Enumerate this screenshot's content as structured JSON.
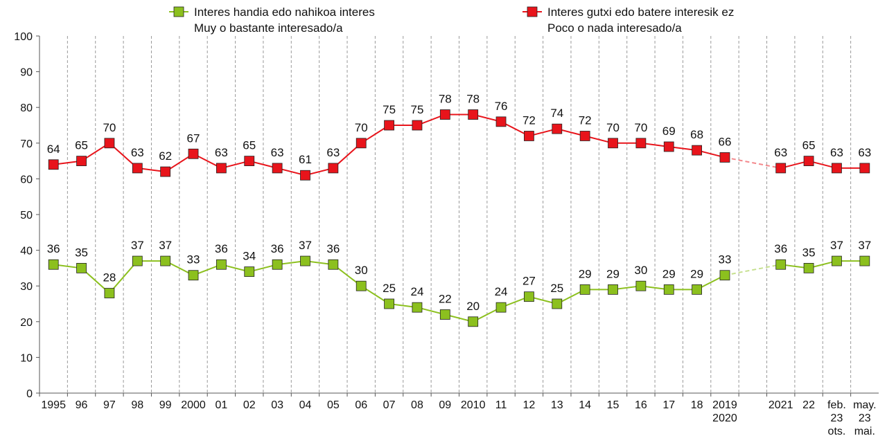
{
  "chart_data": {
    "type": "line",
    "categories": [
      "1995",
      "96",
      "97",
      "98",
      "99",
      "2000",
      "01",
      "02",
      "03",
      "04",
      "05",
      "06",
      "07",
      "08",
      "09",
      "2010",
      "11",
      "12",
      "13",
      "14",
      "15",
      "16",
      "17",
      "18",
      "2019\n2020",
      null,
      "2021",
      "22",
      "feb.\n23\nots.",
      "may.\n23\nmai."
    ],
    "series": [
      {
        "name": "Interes handia edo nahikoa interes\nMuy o bastante interesado/a",
        "color": "#8cc01e",
        "values": [
          36,
          35,
          28,
          37,
          37,
          33,
          36,
          34,
          36,
          37,
          36,
          30,
          25,
          24,
          22,
          20,
          24,
          27,
          25,
          29,
          29,
          30,
          29,
          29,
          33,
          null,
          36,
          35,
          37,
          37
        ]
      },
      {
        "name": "Interes gutxi edo batere interesik ez\nPoco o nada interesado/a",
        "color": "#e8141b",
        "values": [
          64,
          65,
          70,
          63,
          62,
          67,
          63,
          65,
          63,
          61,
          63,
          70,
          75,
          75,
          78,
          78,
          76,
          72,
          74,
          72,
          70,
          70,
          69,
          68,
          66,
          null,
          63,
          65,
          63,
          63
        ]
      }
    ],
    "ylim": [
      0,
      100
    ],
    "yticks": [
      0,
      10,
      20,
      30,
      40,
      50,
      60,
      70,
      80,
      90,
      100
    ],
    "grid": "x",
    "legend": "top"
  }
}
